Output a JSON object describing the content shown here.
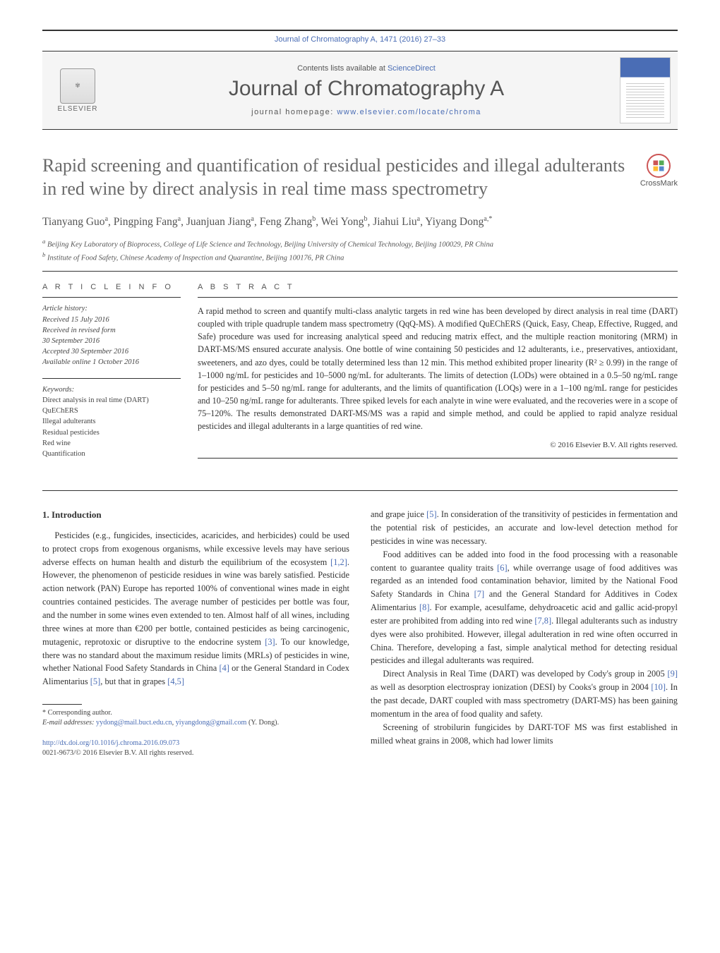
{
  "journal_ref": "Journal of Chromatography A, 1471 (2016) 27–33",
  "masthead": {
    "elsevier": "ELSEVIER",
    "contents_prefix": "Contents lists available at ",
    "contents_link": "ScienceDirect",
    "journal_name": "Journal of Chromatography A",
    "homepage_prefix": "journal homepage: ",
    "homepage_link": "www.elsevier.com/locate/chroma"
  },
  "crossmark": "CrossMark",
  "title": "Rapid screening and quantification of residual pesticides and illegal adulterants in red wine by direct analysis in real time mass spectrometry",
  "authors_html": "Tianyang Guo<sup>a</sup>, Pingping Fang<sup>a</sup>, Juanjuan Jiang<sup>a</sup>, Feng Zhang<sup>b</sup>, Wei Yong<sup>b</sup>, Jiahui Liu<sup>a</sup>, Yiyang Dong<sup>a,*</sup>",
  "affiliations": {
    "a": "Beijing Key Laboratory of Bioprocess, College of Life Science and Technology, Beijing University of Chemical Technology, Beijing 100029, PR China",
    "b": "Institute of Food Safety, Chinese Academy of Inspection and Quarantine, Beijing 100176, PR China"
  },
  "article_info_head": "A R T I C L E   I N F O",
  "abstract_head": "A B S T R A C T",
  "history_label": "Article history:",
  "history": [
    "Received 15 July 2016",
    "Received in revised form",
    "30 September 2016",
    "Accepted 30 September 2016",
    "Available online 1 October 2016"
  ],
  "keywords_label": "Keywords:",
  "keywords": [
    "Direct analysis in real time (DART)",
    "QuEChERS",
    "Illegal adulterants",
    "Residual pesticides",
    "Red wine",
    "Quantification"
  ],
  "abstract": "A rapid method to screen and quantify multi-class analytic targets in red wine has been developed by direct analysis in real time (DART) coupled with triple quadruple tandem mass spectrometry (QqQ-MS). A modified QuEChERS (Quick, Easy, Cheap, Effective, Rugged, and Safe) procedure was used for increasing analytical speed and reducing matrix effect, and the multiple reaction monitoring (MRM) in DART-MS/MS ensured accurate analysis. One bottle of wine containing 50 pesticides and 12 adulterants, i.e., preservatives, antioxidant, sweeteners, and azo dyes, could be totally determined less than 12 min. This method exhibited proper linearity (R² ≥ 0.99) in the range of 1–1000 ng/mL for pesticides and 10–5000 ng/mL for adulterants. The limits of detection (LODs) were obtained in a 0.5–50 ng/mL range for pesticides and 5–50 ng/mL range for adulterants, and the limits of quantification (LOQs) were in a 1–100 ng/mL range for pesticides and 10–250 ng/mL range for adulterants. Three spiked levels for each analyte in wine were evaluated, and the recoveries were in a scope of 75–120%. The results demonstrated DART-MS/MS was a rapid and simple method, and could be applied to rapid analyze residual pesticides and illegal adulterants in a large quantities of red wine.",
  "copyright": "© 2016 Elsevier B.V. All rights reserved.",
  "intro_head": "1. Introduction",
  "col1": {
    "p1a": "Pesticides (e.g., fungicides, insecticides, acaricides, and herbicides) could be used to protect crops from exogenous organisms, while excessive levels may have serious adverse effects on human health and disturb the equilibrium of the ecosystem ",
    "c1": "[1,2]",
    "p1b": ". However, the phenomenon of pesticide residues in wine was barely satisfied. Pesticide action network (PAN) Europe has reported 100% of conventional wines made in eight countries contained pesticides. The average number of pesticides per bottle was four, and the number in some wines even extended to ten. Almost half of all wines, including three wines at more than €200 per bottle, contained pesticides as being carcinogenic, mutagenic, reprotoxic or disruptive to the endocrine system ",
    "c2": "[3]",
    "p1c": ". To our knowledge, there was no standard about the maximum residue limits (MRLs) of pesticides in wine, whether National Food Safety Standards in China ",
    "c3": "[4]",
    "p1d": " or the General Standard in Codex Alimentarius ",
    "c4": "[5]",
    "p1e": ", but that in grapes ",
    "c5": "[4,5]"
  },
  "footnote": {
    "corr": "* Corresponding author.",
    "email_label": "E-mail addresses: ",
    "email1": "yydong@mail.buct.edu.cn",
    "email2": "yiyangdong@gmail.com",
    "email_suffix": " (Y. Dong)."
  },
  "doi": {
    "link": "http://dx.doi.org/10.1016/j.chroma.2016.09.073",
    "issn": "0021-9673/© 2016 Elsevier B.V. All rights reserved."
  },
  "col2": {
    "p1a": "and grape juice ",
    "c1": "[5]",
    "p1b": ". In consideration of the transitivity of pesticides in fermentation and the potential risk of pesticides, an accurate and low-level detection method for pesticides in wine was necessary.",
    "p2a": "Food additives can be added into food in the food processing with a reasonable content to guarantee quality traits ",
    "c2": "[6]",
    "p2b": ", while overrange usage of food additives was regarded as an intended food contamination behavior, limited by the National Food Safety Standards in China ",
    "c3": "[7]",
    "p2c": " and the General Standard for Additives in Codex Alimentarius ",
    "c4": "[8]",
    "p2d": ". For example, acesulfame, dehydroacetic acid and gallic acid-propyl ester are prohibited from adding into red wine ",
    "c5": "[7,8]",
    "p2e": ". Illegal adulterants such as industry dyes were also prohibited. However, illegal adulteration in red wine often occurred in China. Therefore, developing a fast, simple analytical method for detecting residual pesticides and illegal adulterants was required.",
    "p3a": "Direct Analysis in Real Time (DART) was developed by Cody's group in 2005 ",
    "c6": "[9]",
    "p3b": " as well as desorption electrospray ionization (DESI) by Cooks's group in 2004 ",
    "c7": "[10]",
    "p3c": ". In the past decade, DART coupled with mass spectrometry (DART-MS) has been gaining momentum in the area of food quality and safety.",
    "p4": "Screening of strobilurin fungicides by DART-TOF MS was first established in milled wheat grains in 2008, which had lower limits"
  },
  "colors": {
    "link": "#4a6db5",
    "heading_gray": "#6a6a6a",
    "text": "#333333"
  }
}
